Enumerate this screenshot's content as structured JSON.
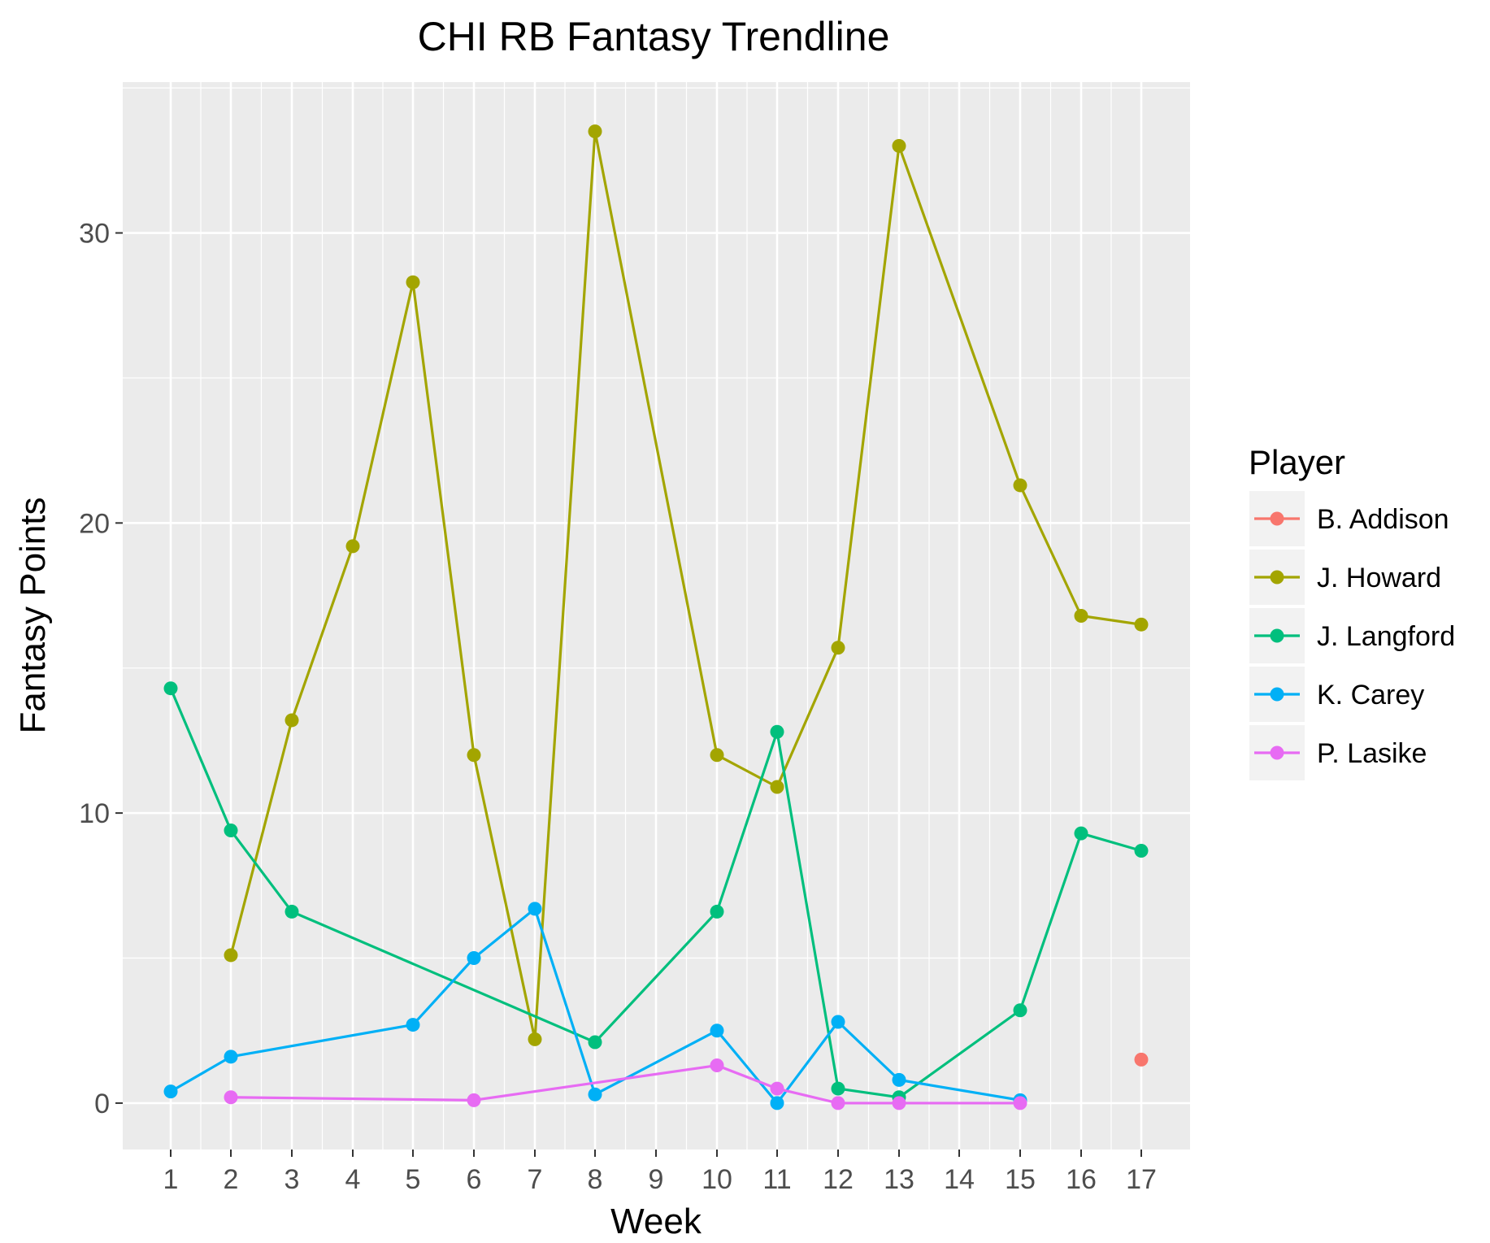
{
  "chart_data": {
    "type": "line",
    "title": "CHI RB Fantasy Trendline",
    "xlabel": "Week",
    "ylabel": "Fantasy Points",
    "x_ticks": [
      "1",
      "2",
      "3",
      "4",
      "5",
      "6",
      "7",
      "8",
      "9",
      "10",
      "11",
      "12",
      "13",
      "14",
      "15",
      "16",
      "17"
    ],
    "y_ticks": [
      "0",
      "10",
      "20",
      "30"
    ],
    "ylim": [
      -1.6,
      35.2
    ],
    "grid": true,
    "legend": {
      "title": "Player",
      "placement": "right"
    },
    "series": [
      {
        "name": "B. Addison",
        "color": "#F8766D",
        "points": [
          [
            17,
            1.5
          ]
        ]
      },
      {
        "name": "J. Howard",
        "color": "#A3A500",
        "points": [
          [
            2,
            5.1
          ],
          [
            3,
            13.2
          ],
          [
            4,
            19.2
          ],
          [
            5,
            28.3
          ],
          [
            6,
            12.0
          ],
          [
            7,
            2.2
          ],
          [
            8,
            33.5
          ],
          [
            10,
            12.0
          ],
          [
            11,
            10.9
          ],
          [
            12,
            15.7
          ],
          [
            13,
            33.0
          ],
          [
            15,
            21.3
          ],
          [
            16,
            16.8
          ],
          [
            17,
            16.5
          ]
        ]
      },
      {
        "name": "J. Langford",
        "color": "#00BF7D",
        "points": [
          [
            1,
            14.3
          ],
          [
            2,
            9.4
          ],
          [
            3,
            6.6
          ],
          [
            8,
            2.1
          ],
          [
            10,
            6.6
          ],
          [
            11,
            12.8
          ],
          [
            12,
            0.5
          ],
          [
            13,
            0.2
          ],
          [
            15,
            3.2
          ],
          [
            16,
            9.3
          ],
          [
            17,
            8.7
          ]
        ]
      },
      {
        "name": "K. Carey",
        "color": "#00B0F6",
        "points": [
          [
            1,
            0.4
          ],
          [
            2,
            1.6
          ],
          [
            5,
            2.7
          ],
          [
            6,
            5.0
          ],
          [
            7,
            6.7
          ],
          [
            8,
            0.3
          ],
          [
            10,
            2.5
          ],
          [
            11,
            0.0
          ],
          [
            12,
            2.8
          ],
          [
            13,
            0.8
          ],
          [
            15,
            0.1
          ]
        ]
      },
      {
        "name": "P. Lasike",
        "color": "#E76BF3",
        "points": [
          [
            2,
            0.2
          ],
          [
            6,
            0.1
          ],
          [
            10,
            1.3
          ],
          [
            11,
            0.5
          ],
          [
            12,
            0.0
          ],
          [
            13,
            0.0
          ],
          [
            15,
            0.0
          ]
        ]
      }
    ]
  }
}
